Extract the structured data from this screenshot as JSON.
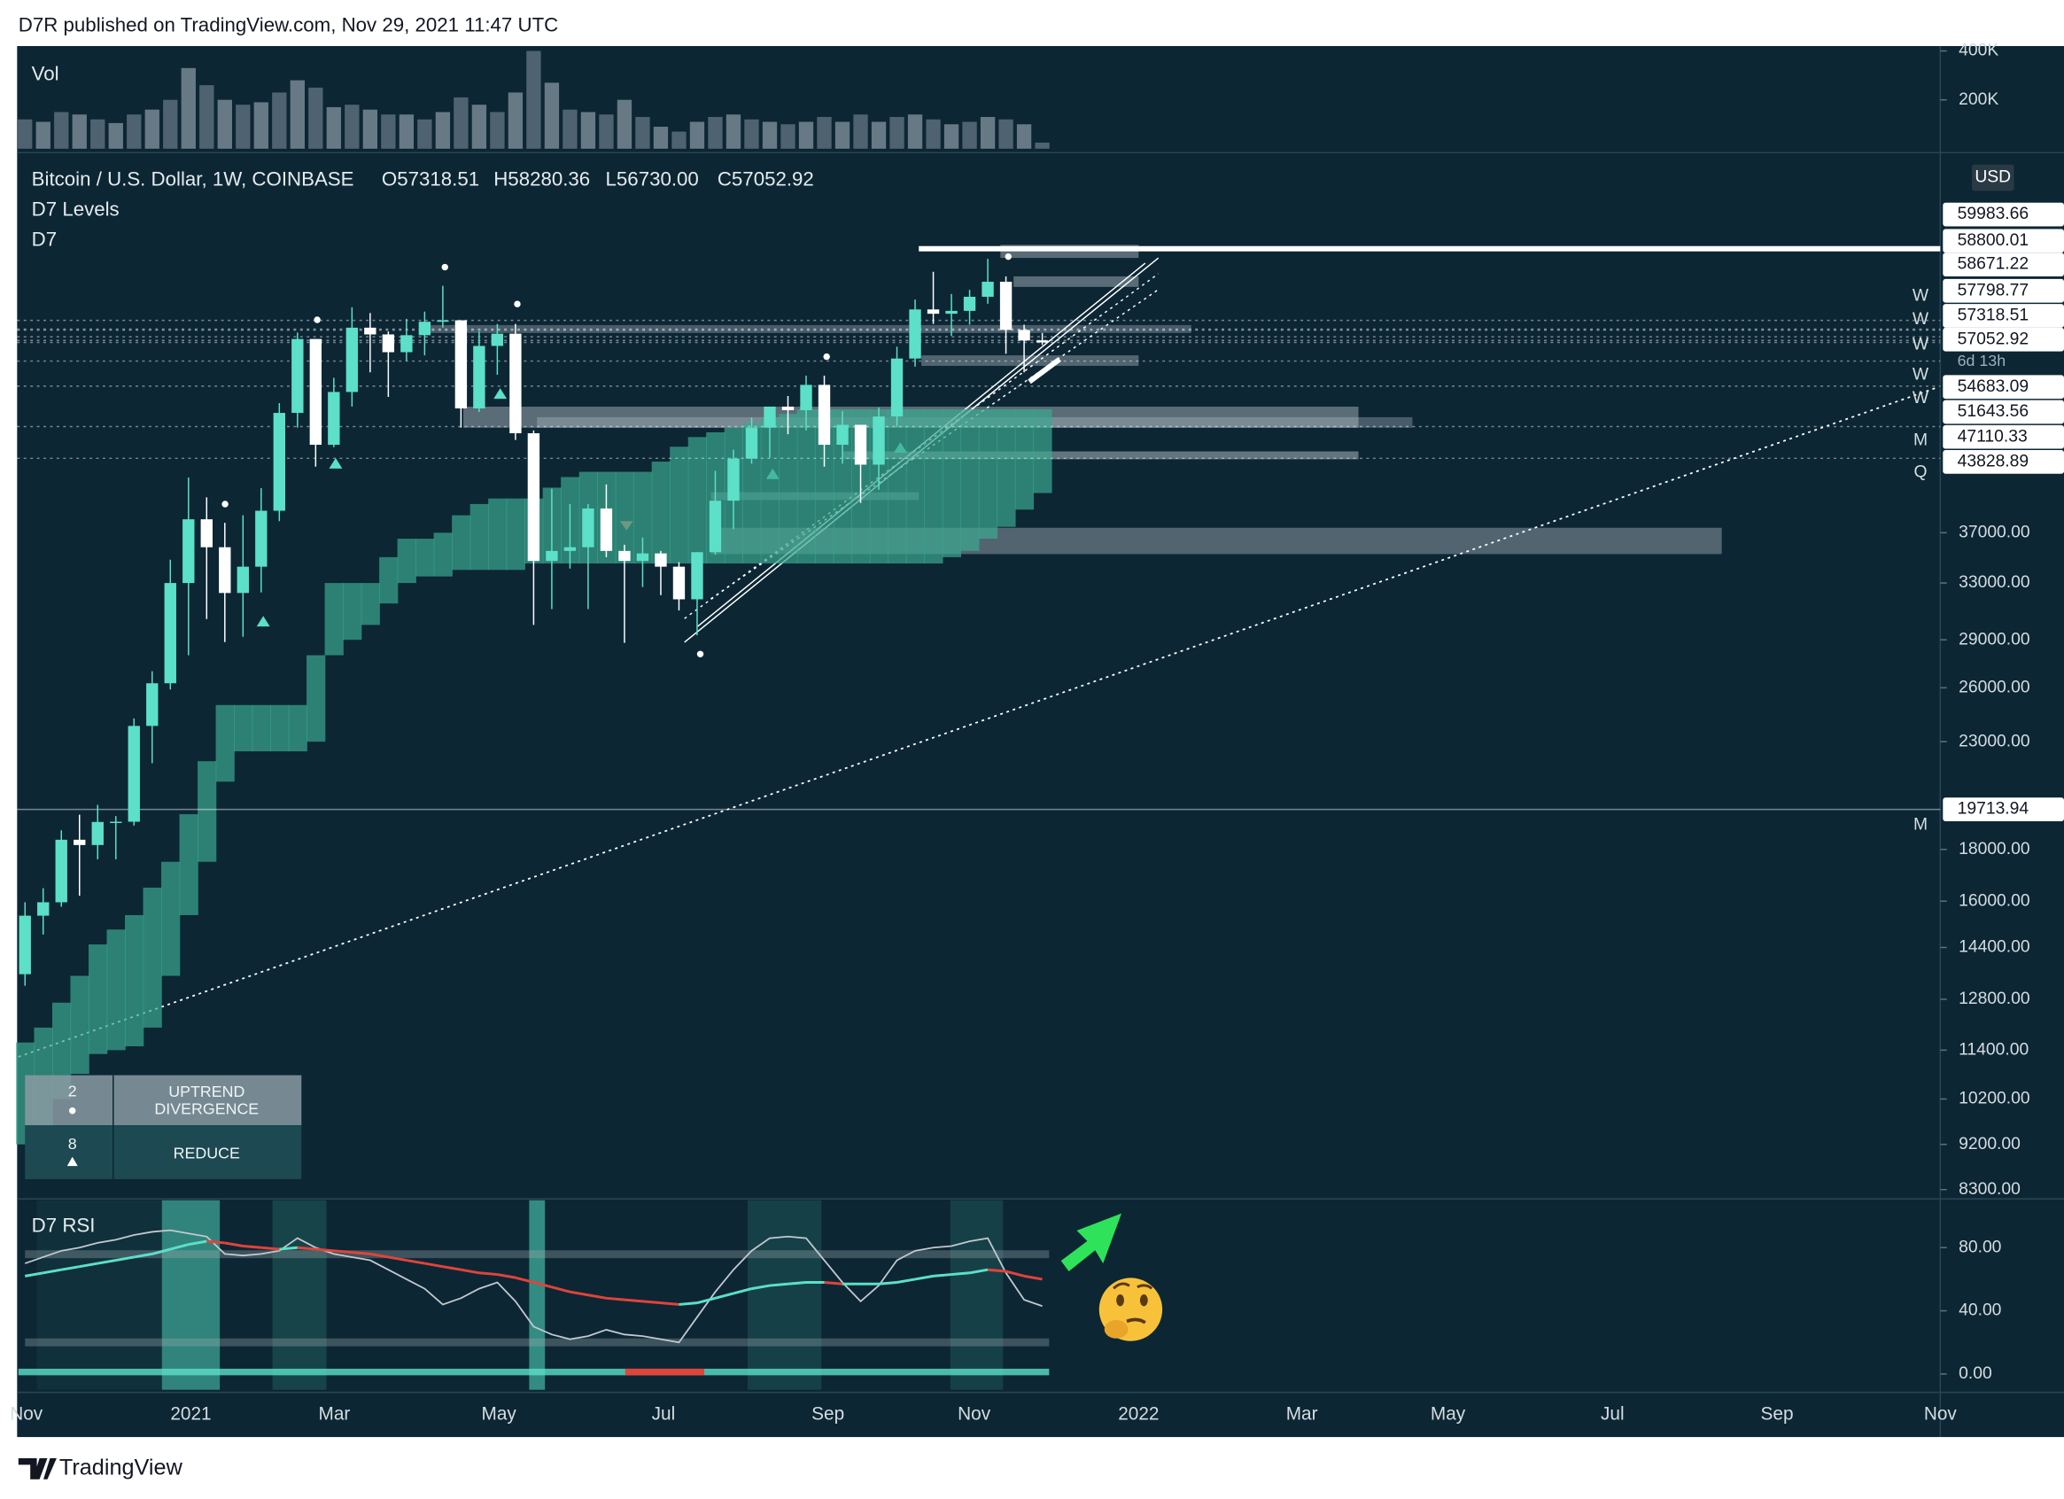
{
  "header": {
    "title": "D7R published on TradingView.com, Nov 29, 2021 11:47 UTC"
  },
  "footer": {
    "brand": "TradingView"
  },
  "chart_data": [
    {
      "type": "candlestick",
      "title": "Bitcoin / U.S. Dollar, 1W, COINBASE",
      "ohlc_text": [
        "O57318.51",
        "H58280.36",
        "L56730.00",
        "C57052.92"
      ],
      "indicators": [
        "D7 Levels",
        "D7"
      ],
      "open": [
        13550,
        15480,
        15960,
        18400,
        18180,
        19160,
        19170,
        23840,
        26270,
        33000,
        38150,
        35800,
        32260,
        34250,
        38900,
        48600,
        57500,
        45200,
        50970,
        59000,
        58100,
        55800,
        58000,
        59800,
        60000,
        49100,
        56600,
        58200,
        46400,
        34700,
        35500,
        35800,
        39100,
        35500,
        34700,
        35300,
        34250,
        31800,
        35400,
        39800,
        43800,
        47000,
        49300,
        48900,
        51800,
        45200,
        47300,
        43200,
        48200,
        55000,
        61500,
        60900,
        61300,
        63300,
        65500,
        58700,
        57318.51
      ],
      "high": [
        15960,
        16480,
        18800,
        19480,
        19920,
        19420,
        24250,
        27000,
        34800,
        41950,
        40100,
        37850,
        38500,
        40950,
        49700,
        58350,
        57500,
        52640,
        61800,
        61000,
        58500,
        60200,
        61200,
        64900,
        60000,
        58500,
        59500,
        59500,
        46700,
        40900,
        39500,
        39500,
        41300,
        36000,
        36600,
        35500,
        34600,
        35400,
        42600,
        44700,
        48100,
        49300,
        50500,
        52900,
        52900,
        48800,
        47300,
        49200,
        56500,
        62900,
        67000,
        63700,
        64300,
        69000,
        66300,
        59400,
        58280.36
      ],
      "low": [
        13200,
        14830,
        15800,
        16200,
        17600,
        17600,
        19000,
        21900,
        25900,
        28000,
        30400,
        28850,
        29200,
        32300,
        37990,
        47000,
        43000,
        44950,
        49300,
        53300,
        50400,
        54700,
        55400,
        59000,
        47000,
        48700,
        53000,
        45700,
        30000,
        31100,
        34100,
        31100,
        35000,
        28800,
        32700,
        32100,
        31000,
        29300,
        35200,
        37300,
        43300,
        43900,
        46300,
        46700,
        43000,
        43300,
        39600,
        40800,
        47100,
        54000,
        59500,
        57900,
        59400,
        62300,
        55600,
        53300,
        56730.0
      ],
      "close": [
        15480,
        15960,
        18400,
        18180,
        19160,
        19170,
        23840,
        26270,
        33000,
        38150,
        35800,
        32260,
        34250,
        38900,
        48600,
        57500,
        45200,
        50970,
        59000,
        58100,
        55800,
        58000,
        59800,
        60000,
        49100,
        56600,
        58200,
        46400,
        34700,
        35500,
        35800,
        39100,
        35500,
        34700,
        35300,
        34250,
        31800,
        35400,
        39800,
        43800,
        47000,
        49300,
        48900,
        51800,
        45200,
        47300,
        43200,
        48200,
        55000,
        61500,
        60900,
        61300,
        63300,
        65500,
        58700,
        57300,
        57052.92
      ],
      "up_color": "#5ce0c8",
      "down_color": "#ffffff",
      "cloud_upper": [
        11600,
        12000,
        12700,
        13500,
        14500,
        15000,
        15500,
        16500,
        17500,
        19500,
        22000,
        25000,
        25000,
        25000,
        25000,
        25000,
        28000,
        33000,
        33000,
        33000,
        35000,
        36500,
        36500,
        37000,
        38500,
        39500,
        40000,
        40000,
        40000,
        41000,
        42000,
        42500,
        42500,
        42500,
        42500,
        43500,
        45000,
        46000,
        46500,
        47000,
        47500,
        48000,
        48500,
        49000,
        49000,
        49000,
        49000,
        49000,
        49000,
        49000,
        49000,
        49000,
        49000,
        49000,
        49000,
        49000,
        49000
      ],
      "cloud_lower": [
        9200,
        9600,
        10200,
        10800,
        11300,
        11400,
        11500,
        12000,
        13500,
        15500,
        17500,
        21000,
        22500,
        22500,
        22500,
        22500,
        23000,
        28000,
        29000,
        30000,
        31500,
        33000,
        33500,
        33500,
        34000,
        34000,
        34000,
        34000,
        34500,
        34500,
        34500,
        34500,
        34500,
        34500,
        34500,
        34500,
        34500,
        34500,
        34500,
        34500,
        34500,
        34500,
        34500,
        34500,
        34500,
        34500,
        34500,
        34500,
        34500,
        34500,
        34500,
        35000,
        35500,
        36500,
        37500,
        39000,
        40500
      ],
      "cloud_color": "#3aa890",
      "log_scale": true,
      "ylim": [
        8150,
        87600
      ],
      "yticks": [
        {
          "value": 37000,
          "label": "37000.00"
        },
        {
          "value": 33000,
          "label": "33000.00"
        },
        {
          "value": 29000,
          "label": "29000.00"
        },
        {
          "value": 26000,
          "label": "26000.00"
        },
        {
          "value": 23000,
          "label": "23000.00"
        },
        {
          "value": 18000,
          "label": "18000.00"
        },
        {
          "value": 16000,
          "label": "16000.00"
        },
        {
          "value": 14400,
          "label": "14400.00"
        },
        {
          "value": 12800,
          "label": "12800.00"
        },
        {
          "value": 11400,
          "label": "11400.00"
        },
        {
          "value": 10200,
          "label": "10200.00"
        },
        {
          "value": 9200,
          "label": "9200.00"
        },
        {
          "value": 8300,
          "label": "8300.00"
        }
      ],
      "currency": "USD",
      "price_labels": [
        59983.66,
        58800.01,
        58671.22,
        57798.77,
        57318.51,
        57052.92,
        54683.09,
        51643.56,
        47110.33,
        43828.89,
        19713.94
      ],
      "countdown": "6d 13h",
      "level_tags": [
        "W",
        "W",
        "W",
        "W",
        "W",
        "M",
        "Q",
        "M"
      ],
      "x_labels": [
        "Nov",
        "2021",
        "Mar",
        "May",
        "Jul",
        "Sep",
        "Nov",
        "2022",
        "Mar",
        "May",
        "Jul",
        "Sep",
        "Nov"
      ],
      "signal_table": {
        "rows": [
          {
            "count": 2,
            "label": "UPTREND DIVERGENCE"
          },
          {
            "count": 8,
            "label": "REDUCE"
          }
        ]
      }
    },
    {
      "type": "bar",
      "title": "Vol",
      "values": [
        120000,
        110000,
        150000,
        140000,
        120000,
        105000,
        140000,
        160000,
        200000,
        330000,
        260000,
        200000,
        180000,
        190000,
        230000,
        280000,
        250000,
        170000,
        180000,
        160000,
        140000,
        140000,
        120000,
        150000,
        210000,
        180000,
        150000,
        230000,
        400000,
        270000,
        160000,
        150000,
        140000,
        200000,
        130000,
        90000,
        70000,
        110000,
        130000,
        140000,
        120000,
        110000,
        100000,
        110000,
        130000,
        110000,
        140000,
        110000,
        130000,
        140000,
        120000,
        100000,
        110000,
        130000,
        120000,
        100000,
        25000
      ],
      "color": "#8596a0",
      "ylim": [
        0,
        420000
      ],
      "yticks": [
        {
          "value": 200000,
          "label": "200K"
        },
        {
          "value": 400000,
          "label": "400K"
        }
      ]
    },
    {
      "type": "line",
      "title": "D7 RSI",
      "series": [
        {
          "color": "#c3c9ce",
          "values": [
            70,
            74,
            78,
            80,
            83,
            85,
            88,
            90,
            91,
            89,
            87,
            76,
            75,
            76,
            78,
            86,
            80,
            76,
            74,
            72,
            66,
            60,
            54,
            44,
            48,
            54,
            58,
            46,
            30,
            25,
            22,
            24,
            28,
            25,
            24,
            22,
            20,
            36,
            52,
            66,
            78,
            86,
            87,
            86,
            72,
            58,
            46,
            56,
            72,
            78,
            80,
            81,
            84,
            86,
            64,
            47,
            43
          ]
        },
        {
          "color": "#5ce0c8",
          "down_color": "#e0443a",
          "values": [
            62,
            64,
            66,
            68,
            70,
            72,
            74,
            76,
            79,
            82,
            84,
            83,
            81,
            80,
            79,
            80,
            79,
            78,
            77,
            76,
            74,
            72,
            70,
            68,
            66,
            64,
            63,
            61,
            58,
            55,
            52,
            50,
            48,
            47,
            46,
            45,
            44,
            45,
            48,
            51,
            54,
            56,
            57,
            58,
            58,
            57,
            57,
            57,
            58,
            60,
            62,
            63,
            64,
            66,
            65,
            62,
            60
          ]
        }
      ],
      "ylim": [
        -10,
        110
      ],
      "yticks": [
        {
          "value": 80,
          "label": "80.00"
        },
        {
          "value": 40,
          "label": "40.00"
        },
        {
          "value": 0,
          "label": "0.00"
        }
      ]
    }
  ]
}
